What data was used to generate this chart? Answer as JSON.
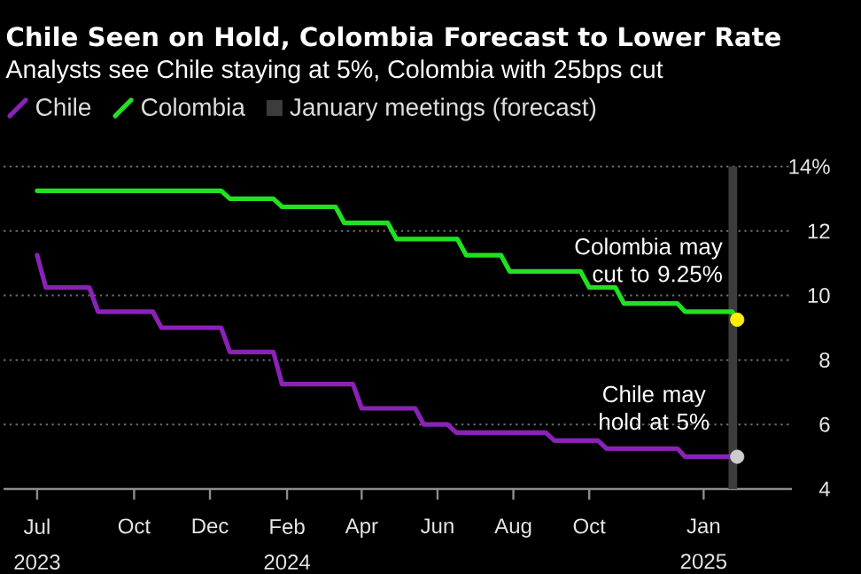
{
  "chart_data": {
    "type": "line",
    "title": "Chile Seen on Hold, Colombia Forecast to Lower Rate",
    "subtitle": "Analysts see Chile staying at 5%, Colombia with 25bps cut",
    "xlim": [
      "2023-06-18",
      "2025-03-13"
    ],
    "xticks": [
      {
        "value": "2023-07-15",
        "label": "Jul 2023"
      },
      {
        "value": "2023-10-01",
        "label": "Oct"
      },
      {
        "value": "2023-12-01",
        "label": "Dec"
      },
      {
        "value": "2024-02-01",
        "label": "Feb 2024"
      },
      {
        "value": "2024-04-01",
        "label": "Apr"
      },
      {
        "value": "2024-06-01",
        "label": "Jun"
      },
      {
        "value": "2024-08-01",
        "label": "Aug"
      },
      {
        "value": "2024-10-01",
        "label": "Oct"
      },
      {
        "value": "2025-01-01",
        "label": "Jan 2025"
      }
    ],
    "ylim": [
      4,
      14
    ],
    "yticks": [
      4,
      6,
      8,
      10,
      12,
      {
        "value": 14,
        "label": "14%"
      }
    ],
    "grid": "y",
    "legend": "top left",
    "series": [
      {
        "name": "Chile",
        "color": "#8a22b8",
        "x": [
          "2023-07-15",
          "2023-07-22",
          "2023-08-26",
          "2023-09-02",
          "2023-10-16",
          "2023-10-23",
          "2023-12-10",
          "2023-12-17",
          "2024-01-21",
          "2024-01-28",
          "2024-03-25",
          "2024-04-01",
          "2024-05-14",
          "2024-05-21",
          "2024-06-09",
          "2024-06-16",
          "2024-08-27",
          "2024-09-03",
          "2024-10-08",
          "2024-10-15",
          "2024-12-11",
          "2024-12-17",
          "2025-01-28"
        ],
        "values": [
          11.25,
          10.25,
          10.25,
          9.5,
          9.5,
          9.0,
          9.0,
          8.25,
          8.25,
          7.25,
          7.25,
          6.5,
          6.5,
          6.0,
          6.0,
          5.75,
          5.75,
          5.5,
          5.5,
          5.25,
          5.25,
          5.0,
          5.0
        ]
      },
      {
        "name": "Colombia",
        "color": "#22e022",
        "x": [
          "2023-07-15",
          "2023-12-10",
          "2023-12-17",
          "2024-01-21",
          "2024-01-28",
          "2024-03-11",
          "2024-03-18",
          "2024-04-22",
          "2024-04-29",
          "2024-06-17",
          "2024-06-24",
          "2024-07-22",
          "2024-07-29",
          "2024-09-24",
          "2024-10-01",
          "2024-10-22",
          "2024-10-29",
          "2024-12-11",
          "2024-12-17",
          "2025-01-24",
          "2025-01-28"
        ],
        "values": [
          13.25,
          13.25,
          13.0,
          13.0,
          12.75,
          12.75,
          12.25,
          12.25,
          11.75,
          11.75,
          11.25,
          11.25,
          10.75,
          10.75,
          10.25,
          10.25,
          9.75,
          9.75,
          9.5,
          9.5,
          9.25
        ]
      },
      {
        "type": "scatter",
        "color": "#ffee00",
        "marker": "circle",
        "x": [
          "2025-01-28"
        ],
        "values": [
          9.25
        ]
      },
      {
        "type": "scatter",
        "color": "#cccccc",
        "marker": "circle",
        "x": [
          "2025-01-28"
        ],
        "values": [
          5
        ]
      }
    ],
    "bands": [
      {
        "axis": "x",
        "from": "2025-01-21",
        "to": "2025-01-28",
        "label": "January meetings (forecast)",
        "color": "#3c3c3c"
      }
    ],
    "annotations": [
      {
        "text": "Colombia may cut to 9.25%",
        "x": "2025-01-28",
        "y": 9.25
      },
      {
        "text": "Chile may hold at 5%",
        "x": "2025-01-28",
        "y": 5
      }
    ]
  }
}
